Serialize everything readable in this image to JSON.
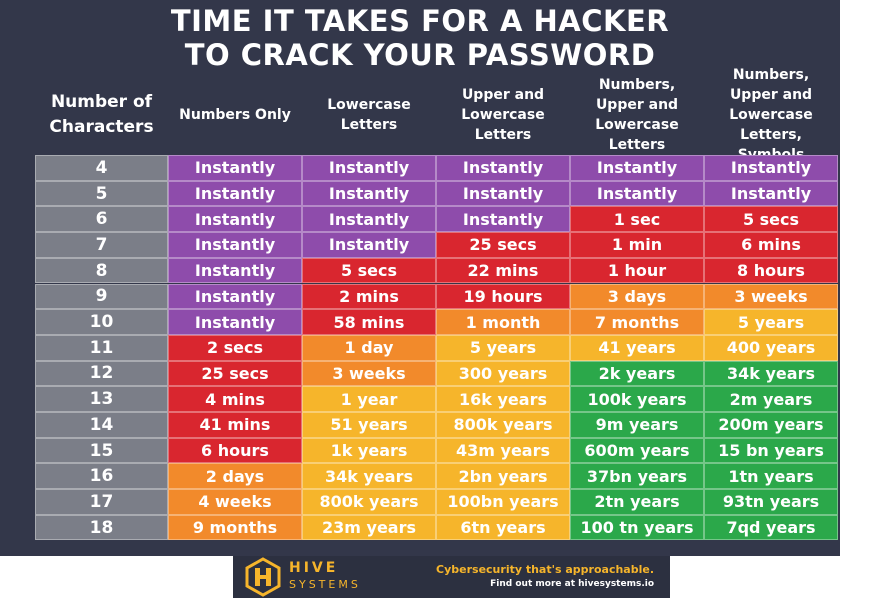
{
  "header": {
    "title_line1": "TIME IT TAKES FOR A HACKER",
    "title_line2": "TO CRACK YOUR PASSWORD"
  },
  "table": {
    "columns": [
      "Number of Characters",
      "Numbers Only",
      "Lowercase Letters",
      "Upper and Lowercase Letters",
      "Numbers, Upper and Lowercase Letters",
      "Numbers, Upper and Lowercase Letters, Symbols"
    ],
    "rows": [
      {
        "characters": "4",
        "cells": [
          "Instantly",
          "Instantly",
          "Instantly",
          "Instantly",
          "Instantly"
        ],
        "colors": [
          "#8e4cab",
          "#8e4cab",
          "#8e4cab",
          "#8e4cab",
          "#8e4cab"
        ]
      },
      {
        "characters": "5",
        "cells": [
          "Instantly",
          "Instantly",
          "Instantly",
          "Instantly",
          "Instantly"
        ],
        "colors": [
          "#8e4cab",
          "#8e4cab",
          "#8e4cab",
          "#8e4cab",
          "#8e4cab"
        ]
      },
      {
        "characters": "6",
        "cells": [
          "Instantly",
          "Instantly",
          "Instantly",
          "1 sec",
          "5 secs"
        ],
        "colors": [
          "#8e4cab",
          "#8e4cab",
          "#8e4cab",
          "#d9262f",
          "#d9262f"
        ]
      },
      {
        "characters": "7",
        "cells": [
          "Instantly",
          "Instantly",
          "25 secs",
          "1 min",
          "6 mins"
        ],
        "colors": [
          "#8e4cab",
          "#8e4cab",
          "#d9262f",
          "#d9262f",
          "#d9262f"
        ]
      },
      {
        "characters": "8",
        "cells": [
          "Instantly",
          "5 secs",
          "22 mins",
          "1 hour",
          "8 hours"
        ],
        "colors": [
          "#8e4cab",
          "#d9262f",
          "#d9262f",
          "#d9262f",
          "#d9262f"
        ]
      },
      {
        "characters": "9",
        "cells": [
          "Instantly",
          "2 mins",
          "19 hours",
          "3 days",
          "3 weeks"
        ],
        "colors": [
          "#8e4cab",
          "#d9262f",
          "#d9262f",
          "#f28a2b",
          "#f28a2b"
        ]
      },
      {
        "characters": "10",
        "cells": [
          "Instantly",
          "58 mins",
          "1 month",
          "7 months",
          "5 years"
        ],
        "colors": [
          "#8e4cab",
          "#d9262f",
          "#f28a2b",
          "#f28a2b",
          "#f6b52b"
        ]
      },
      {
        "characters": "11",
        "cells": [
          "2 secs",
          "1 day",
          "5 years",
          "41 years",
          "400 years"
        ],
        "colors": [
          "#d9262f",
          "#f28a2b",
          "#f6b52b",
          "#f6b52b",
          "#f6b52b"
        ]
      },
      {
        "characters": "12",
        "cells": [
          "25 secs",
          "3 weeks",
          "300 years",
          "2k years",
          "34k years"
        ],
        "colors": [
          "#d9262f",
          "#f28a2b",
          "#f6b52b",
          "#2ba84a",
          "#2ba84a"
        ]
      },
      {
        "characters": "13",
        "cells": [
          "4 mins",
          "1 year",
          "16k years",
          "100k years",
          "2m years"
        ],
        "colors": [
          "#d9262f",
          "#f6b52b",
          "#f6b52b",
          "#2ba84a",
          "#2ba84a"
        ]
      },
      {
        "characters": "14",
        "cells": [
          "41 mins",
          "51 years",
          "800k years",
          "9m years",
          "200m years"
        ],
        "colors": [
          "#d9262f",
          "#f6b52b",
          "#f6b52b",
          "#2ba84a",
          "#2ba84a"
        ]
      },
      {
        "characters": "15",
        "cells": [
          "6 hours",
          "1k years",
          "43m years",
          "600m years",
          "15 bn years"
        ],
        "colors": [
          "#d9262f",
          "#f6b52b",
          "#f6b52b",
          "#2ba84a",
          "#2ba84a"
        ]
      },
      {
        "characters": "16",
        "cells": [
          "2 days",
          "34k years",
          "2bn years",
          "37bn years",
          "1tn years"
        ],
        "colors": [
          "#f28a2b",
          "#f6b52b",
          "#f6b52b",
          "#2ba84a",
          "#2ba84a"
        ]
      },
      {
        "characters": "17",
        "cells": [
          "4 weeks",
          "800k years",
          "100bn years",
          "2tn years",
          "93tn years"
        ],
        "colors": [
          "#f28a2b",
          "#f6b52b",
          "#f6b52b",
          "#2ba84a",
          "#2ba84a"
        ]
      },
      {
        "characters": "18",
        "cells": [
          "9 months",
          "23m years",
          "6tn years",
          "100 tn years",
          "7qd years"
        ],
        "colors": [
          "#f28a2b",
          "#f6b52b",
          "#f6b52b",
          "#2ba84a",
          "#2ba84a"
        ]
      }
    ]
  },
  "footer": {
    "brand_line1": "HIVE",
    "brand_line2": "SYSTEMS",
    "tagline": "Cybersecurity that's approachable.",
    "link": "Find out more at hivesystems.io"
  }
}
